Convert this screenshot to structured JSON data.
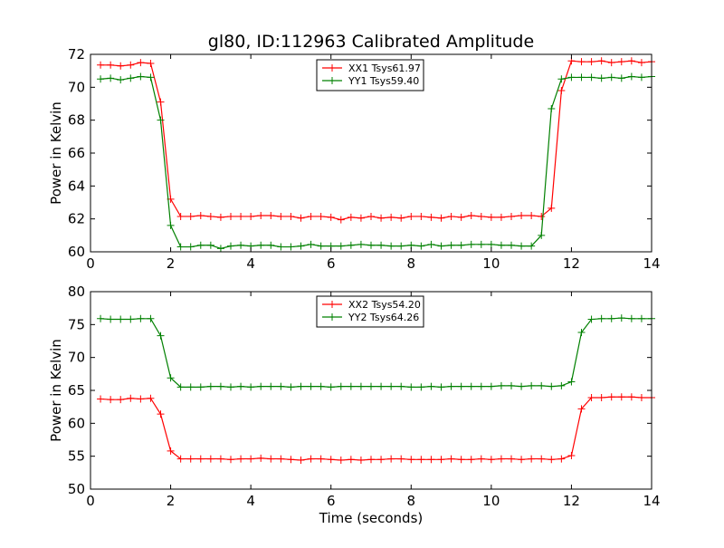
{
  "colors": {
    "xx": "#ff0000",
    "yy": "#008000",
    "axes": "#000000",
    "background": "#ffffff"
  },
  "chart_data": [
    {
      "type": "line",
      "title": "gl80, ID:112963 Calibrated Amplitude",
      "xlabel": "",
      "ylabel": "Power in Kelvin",
      "xlim": [
        0,
        14
      ],
      "ylim": [
        60,
        72
      ],
      "xticks": [
        "0",
        "2",
        "4",
        "6",
        "8",
        "10",
        "12",
        "14"
      ],
      "yticks": [
        "60",
        "62",
        "64",
        "66",
        "68",
        "70",
        "72"
      ],
      "grid": false,
      "legend_placement": "top-center",
      "x": [
        0.25,
        0.5,
        0.75,
        1.0,
        1.25,
        1.5,
        1.75,
        2.0,
        2.25,
        2.5,
        2.75,
        3.0,
        3.25,
        3.5,
        3.75,
        4.0,
        4.25,
        4.5,
        4.75,
        5.0,
        5.25,
        5.5,
        5.75,
        6.0,
        6.25,
        6.5,
        6.75,
        7.0,
        7.25,
        7.5,
        7.75,
        8.0,
        8.25,
        8.5,
        8.75,
        9.0,
        9.25,
        9.5,
        9.75,
        10.0,
        10.25,
        10.5,
        10.75,
        11.0,
        11.25,
        11.5,
        11.75,
        12.0,
        12.25,
        12.5,
        12.75,
        13.0,
        13.25,
        13.5,
        13.75,
        14.0
      ],
      "series": [
        {
          "name": "XX1 Tsys61.97",
          "color": "#ff0000",
          "values": [
            71.35,
            71.35,
            71.3,
            71.35,
            71.5,
            71.45,
            69.1,
            63.2,
            62.15,
            62.15,
            62.2,
            62.15,
            62.1,
            62.15,
            62.15,
            62.15,
            62.2,
            62.2,
            62.15,
            62.15,
            62.05,
            62.15,
            62.15,
            62.1,
            61.95,
            62.1,
            62.05,
            62.15,
            62.05,
            62.1,
            62.05,
            62.15,
            62.15,
            62.1,
            62.05,
            62.15,
            62.1,
            62.2,
            62.15,
            62.1,
            62.1,
            62.15,
            62.2,
            62.2,
            62.15,
            62.65,
            69.8,
            71.6,
            71.55,
            71.55,
            71.6,
            71.5,
            71.55,
            71.6,
            71.5,
            71.55
          ]
        },
        {
          "name": "YY1 Tsys59.40",
          "color": "#008000",
          "values": [
            70.5,
            70.55,
            70.45,
            70.55,
            70.65,
            70.6,
            68.0,
            61.6,
            60.3,
            60.3,
            60.4,
            60.4,
            60.2,
            60.35,
            60.4,
            60.35,
            60.4,
            60.4,
            60.3,
            60.3,
            60.35,
            60.45,
            60.35,
            60.35,
            60.35,
            60.4,
            60.45,
            60.4,
            60.4,
            60.35,
            60.35,
            60.4,
            60.35,
            60.45,
            60.35,
            60.4,
            60.4,
            60.45,
            60.45,
            60.45,
            60.4,
            60.4,
            60.35,
            60.35,
            61.0,
            68.7,
            70.5,
            70.6,
            70.6,
            70.6,
            70.55,
            70.6,
            70.55,
            70.65,
            70.6,
            70.65
          ]
        }
      ]
    },
    {
      "type": "line",
      "title": "",
      "xlabel": "Time (seconds)",
      "ylabel": "Power in Kelvin",
      "xlim": [
        0,
        14
      ],
      "ylim": [
        50,
        80
      ],
      "xticks": [
        "0",
        "2",
        "4",
        "6",
        "8",
        "10",
        "12",
        "14"
      ],
      "yticks": [
        "50",
        "55",
        "60",
        "65",
        "70",
        "75",
        "80"
      ],
      "grid": false,
      "legend_placement": "top-center",
      "x": [
        0.25,
        0.5,
        0.75,
        1.0,
        1.25,
        1.5,
        1.75,
        2.0,
        2.25,
        2.5,
        2.75,
        3.0,
        3.25,
        3.5,
        3.75,
        4.0,
        4.25,
        4.5,
        4.75,
        5.0,
        5.25,
        5.5,
        5.75,
        6.0,
        6.25,
        6.5,
        6.75,
        7.0,
        7.25,
        7.5,
        7.75,
        8.0,
        8.25,
        8.5,
        8.75,
        9.0,
        9.25,
        9.5,
        9.75,
        10.0,
        10.25,
        10.5,
        10.75,
        11.0,
        11.25,
        11.5,
        11.75,
        12.0,
        12.25,
        12.5,
        12.75,
        13.0,
        13.25,
        13.5,
        13.75,
        14.0
      ],
      "series": [
        {
          "name": "XX2 Tsys54.20",
          "color": "#ff0000",
          "values": [
            63.7,
            63.6,
            63.6,
            63.8,
            63.7,
            63.8,
            61.4,
            55.8,
            54.6,
            54.6,
            54.6,
            54.6,
            54.6,
            54.5,
            54.6,
            54.6,
            54.7,
            54.6,
            54.6,
            54.5,
            54.4,
            54.6,
            54.6,
            54.5,
            54.4,
            54.5,
            54.4,
            54.5,
            54.5,
            54.6,
            54.6,
            54.5,
            54.5,
            54.5,
            54.5,
            54.6,
            54.5,
            54.5,
            54.6,
            54.5,
            54.6,
            54.6,
            54.5,
            54.6,
            54.6,
            54.5,
            54.6,
            55.1,
            62.2,
            63.9,
            63.9,
            64.0,
            64.0,
            64.0,
            63.9,
            63.9
          ]
        },
        {
          "name": "YY2 Tsys64.26",
          "color": "#008000",
          "values": [
            75.9,
            75.8,
            75.8,
            75.8,
            75.9,
            75.9,
            73.3,
            66.9,
            65.5,
            65.5,
            65.5,
            65.6,
            65.6,
            65.5,
            65.6,
            65.5,
            65.6,
            65.6,
            65.6,
            65.5,
            65.6,
            65.6,
            65.6,
            65.5,
            65.6,
            65.6,
            65.6,
            65.6,
            65.6,
            65.6,
            65.6,
            65.5,
            65.5,
            65.6,
            65.5,
            65.6,
            65.6,
            65.6,
            65.6,
            65.6,
            65.7,
            65.7,
            65.6,
            65.7,
            65.7,
            65.6,
            65.7,
            66.3,
            73.8,
            75.8,
            75.9,
            75.9,
            76.0,
            75.9,
            75.9,
            75.9
          ]
        }
      ]
    }
  ]
}
